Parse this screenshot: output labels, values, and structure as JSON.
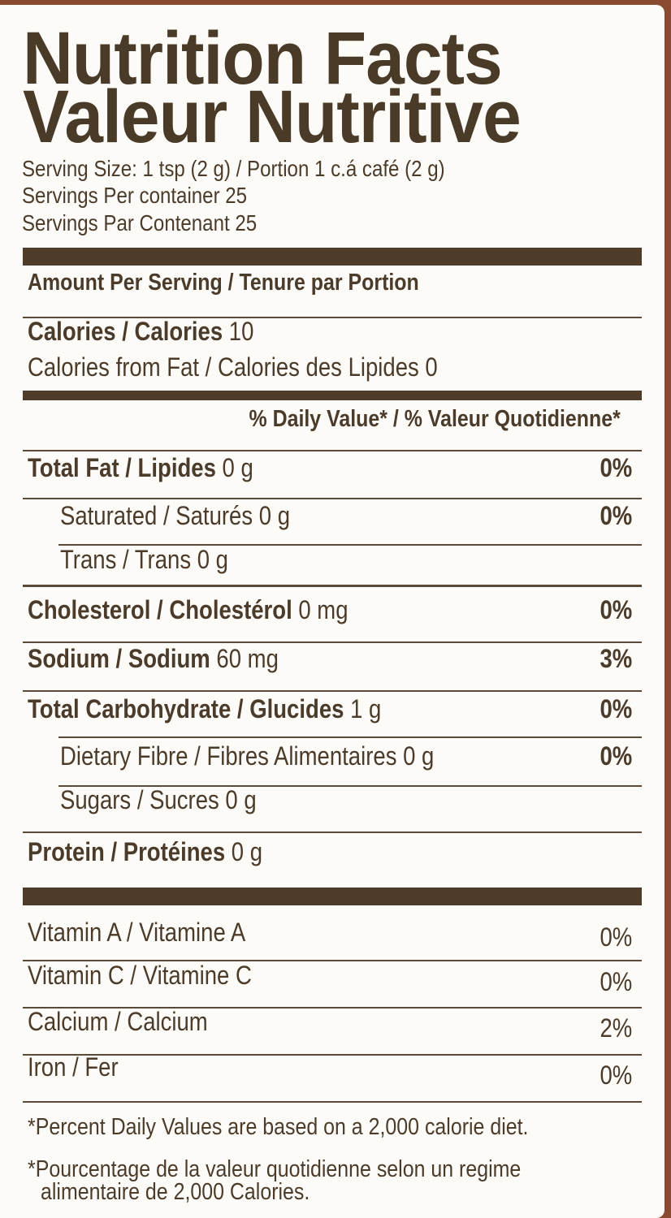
{
  "title": {
    "en": "Nutrition Facts",
    "fr": "Valeur Nutritive"
  },
  "serving": {
    "size": "Serving Size: 1 tsp (2 g) / Portion 1 c.á café (2 g)",
    "per_container_en": "Servings Per container 25",
    "per_container_fr": "Servings Par Contenant 25"
  },
  "amount_header": "Amount Per Serving / Tenure par Portion",
  "calories": {
    "label": "Calories / Calories",
    "value": "10"
  },
  "calories_fat": "Calories from Fat / Calories des Lipides 0",
  "dv_header": "% Daily Value* / % Valeur Quotidienne*",
  "nutrients": [
    {
      "label": "Total Fat / Lipides",
      "amount": "0 g",
      "dv": "0%"
    },
    {
      "label": "Saturated / Saturés 0 g",
      "amount": "",
      "dv": "0%"
    },
    {
      "label": "Trans / Trans 0 g",
      "amount": "",
      "dv": ""
    },
    {
      "label": "Cholesterol / Cholestérol",
      "amount": "0 mg",
      "dv": "0%"
    },
    {
      "label": "Sodium / Sodium",
      "amount": "60 mg",
      "dv": "3%"
    },
    {
      "label": "Total Carbohydrate / Glucides",
      "amount": "1 g",
      "dv": "0%"
    },
    {
      "label": "Dietary Fibre / Fibres Alimentaires 0 g",
      "amount": "",
      "dv": "0%"
    },
    {
      "label": "Sugars / Sucres 0 g",
      "amount": "",
      "dv": ""
    },
    {
      "label": "Protein / Protéines",
      "amount": "0 g",
      "dv": ""
    }
  ],
  "vitamins": [
    {
      "label": "Vitamin A / Vitamine A",
      "dv": "0%"
    },
    {
      "label": "Vitamin C / Vitamine C",
      "dv": "0%"
    },
    {
      "label": "Calcium / Calcium",
      "dv": "2%"
    },
    {
      "label": "Iron / Fer",
      "dv": "0%"
    }
  ],
  "footnote": {
    "en": "*Percent Daily Values are based on a 2,000 calorie diet.",
    "fr_1": "*Pourcentage de la valeur quotidienne selon un regime",
    "fr_2": "alimentaire de 2,000 Calories."
  }
}
